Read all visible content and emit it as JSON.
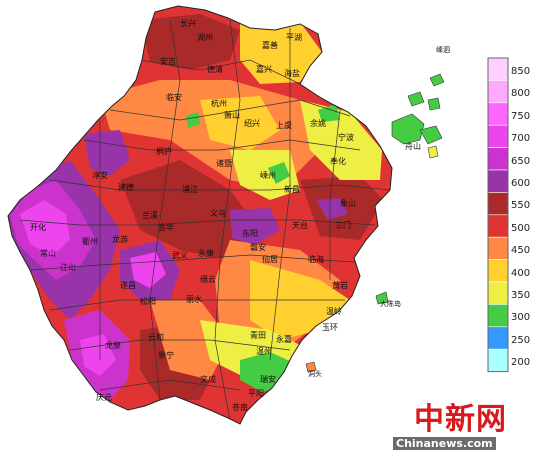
{
  "legend": {
    "values": [
      "850",
      "800",
      "750",
      "700",
      "650",
      "600",
      "550",
      "500",
      "450",
      "400",
      "350",
      "300",
      "250",
      "200"
    ],
    "colors": [
      "#ffd0ff",
      "#ffa8ff",
      "#ff66ff",
      "#ee44ee",
      "#cc33cc",
      "#9933aa",
      "#aa2a2a",
      "#e03434",
      "#ff8844",
      "#ffd030",
      "#eeee44",
      "#44cc44",
      "#3399ff",
      "#aaffff"
    ]
  },
  "cities": [
    {
      "id": "changxing",
      "label": "长兴"
    },
    {
      "id": "huzhou",
      "label": "湖州"
    },
    {
      "id": "jiashan",
      "label": "嘉善"
    },
    {
      "id": "pinghu",
      "label": "平湖"
    },
    {
      "id": "anji",
      "label": "安吉"
    },
    {
      "id": "deqing",
      "label": "德清"
    },
    {
      "id": "jiaxing",
      "label": "嘉兴"
    },
    {
      "id": "haiyan",
      "label": "海盐"
    },
    {
      "id": "lin_an",
      "label": "临安"
    },
    {
      "id": "hangzhou",
      "label": "杭州"
    },
    {
      "id": "xiaoshan",
      "label": "萧山"
    },
    {
      "id": "shaoxing",
      "label": "绍兴"
    },
    {
      "id": "shangyu",
      "label": "上虞"
    },
    {
      "id": "yuyao",
      "label": "余姚"
    },
    {
      "id": "zhoushan",
      "label": "舟山"
    },
    {
      "id": "ningbo",
      "label": "宁波"
    },
    {
      "id": "fenghua",
      "label": "奉化"
    },
    {
      "id": "xiangshan",
      "label": "象山"
    },
    {
      "id": "chun_an",
      "label": "淳安"
    },
    {
      "id": "tonglu",
      "label": "桐庐"
    },
    {
      "id": "jiande",
      "label": "建德"
    },
    {
      "id": "zhuji",
      "label": "诸暨"
    },
    {
      "id": "shengzhou",
      "label": "嵊州"
    },
    {
      "id": "xinchang",
      "label": "新昌"
    },
    {
      "id": "pujiang",
      "label": "浦江"
    },
    {
      "id": "lanxi",
      "label": "兰溪"
    },
    {
      "id": "dongyang",
      "label": "东阳"
    },
    {
      "id": "kaihua",
      "label": "开化"
    },
    {
      "id": "quzhou",
      "label": "衢州"
    },
    {
      "id": "longyou",
      "label": "龙游"
    },
    {
      "id": "jinhua",
      "label": "金华"
    },
    {
      "id": "yiwu",
      "label": "义乌"
    },
    {
      "id": "pan_an",
      "label": "磐安"
    },
    {
      "id": "tiantai",
      "label": "天台"
    },
    {
      "id": "sanmen",
      "label": "三门"
    },
    {
      "id": "changshan",
      "label": "常山"
    },
    {
      "id": "jiangshan",
      "label": "江山"
    },
    {
      "id": "wuyi",
      "label": "武义"
    },
    {
      "id": "yongkang",
      "label": "永康"
    },
    {
      "id": "xianju",
      "label": "仙居"
    },
    {
      "id": "linhai",
      "label": "临海"
    },
    {
      "id": "suichang",
      "label": "遂昌"
    },
    {
      "id": "jinyun",
      "label": "缙云"
    },
    {
      "id": "huangyan",
      "label": "黄岩"
    },
    {
      "id": "songyang",
      "label": "松阳"
    },
    {
      "id": "lishui",
      "label": "丽水"
    },
    {
      "id": "wenling",
      "label": "温岭"
    },
    {
      "id": "qingtian",
      "label": "青田"
    },
    {
      "id": "yuhuan",
      "label": "玉环"
    },
    {
      "id": "longquan",
      "label": "龙泉"
    },
    {
      "id": "yunhe",
      "label": "云和"
    },
    {
      "id": "yongjia",
      "label": "永嘉"
    },
    {
      "id": "jingning",
      "label": "景宁"
    },
    {
      "id": "wenzhou",
      "label": "温州"
    },
    {
      "id": "ruian",
      "label": "瑞安"
    },
    {
      "id": "wencheng",
      "label": "文成"
    },
    {
      "id": "pingyang",
      "label": "平阳"
    },
    {
      "id": "qingyuan",
      "label": "庆元"
    },
    {
      "id": "cangnan",
      "label": "苍南"
    }
  ],
  "islands": [
    {
      "id": "shengsi",
      "label": "嵊泗"
    },
    {
      "id": "dachen",
      "label": "大陈岛"
    },
    {
      "id": "dongtou",
      "label": "洞头"
    }
  ],
  "watermark": {
    "title": "中新网",
    "url": "Chinanews.com"
  }
}
